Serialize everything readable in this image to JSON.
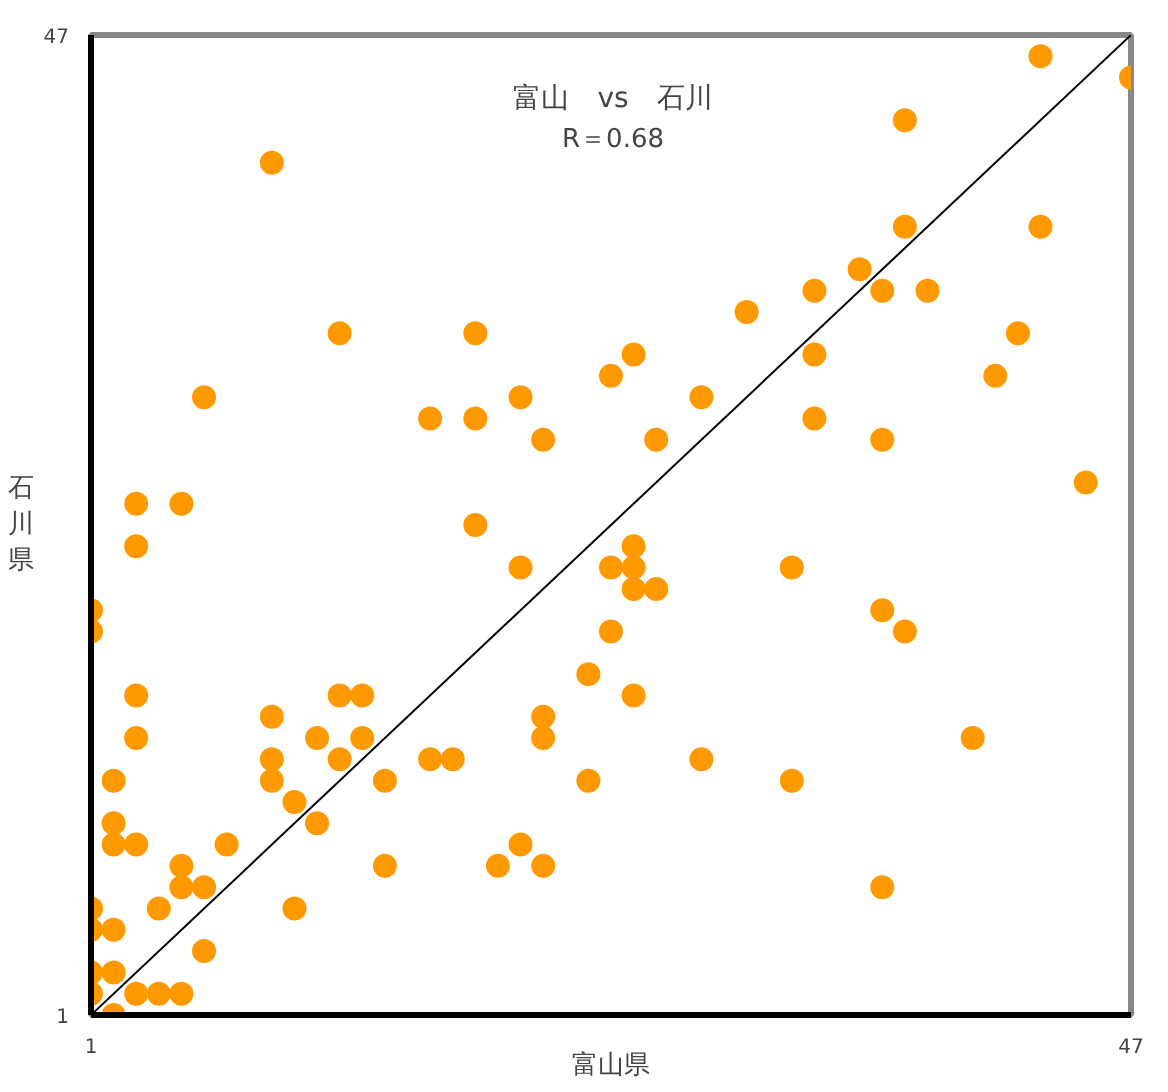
{
  "chart_data": {
    "type": "scatter",
    "title": "富山　vs　石川",
    "subtitle": "R＝0.68",
    "xlabel": "富山県",
    "ylabel": "石川県",
    "xlim": [
      1,
      47
    ],
    "ylim": [
      1,
      47
    ],
    "xticks": [
      1,
      47
    ],
    "yticks": [
      1,
      47
    ],
    "marker": "circle",
    "series": [
      {
        "color": "#ff9900",
        "x": [
          9,
          43,
          47,
          37,
          37,
          43,
          35,
          36,
          33,
          38,
          30,
          42,
          12,
          18,
          25,
          24,
          41,
          33,
          6,
          28,
          20,
          16,
          18,
          33,
          21,
          26,
          36,
          45,
          3,
          5,
          18,
          3,
          1,
          1,
          3,
          3,
          2,
          2,
          2,
          3,
          1,
          1,
          2,
          1,
          2,
          1,
          3,
          4,
          5,
          2,
          6,
          4,
          5,
          5,
          6,
          7,
          10,
          10,
          11,
          9,
          9,
          9,
          11,
          12,
          13,
          13,
          12,
          14,
          14,
          16,
          17,
          20,
          19,
          20,
          21,
          21,
          21,
          23,
          23,
          24,
          24,
          25,
          25,
          25,
          26,
          25,
          32,
          36,
          37,
          40,
          28,
          32,
          36
        ],
        "values": [
          41,
          46,
          45,
          43,
          38,
          38,
          36,
          35,
          35,
          35,
          34,
          33,
          33,
          33,
          32,
          31,
          31,
          32,
          30,
          30,
          30,
          29,
          29,
          29,
          28,
          28,
          28,
          26,
          25,
          25,
          24,
          23,
          20,
          19,
          16,
          14,
          12,
          10,
          9,
          9,
          6,
          5,
          5,
          3,
          3,
          2,
          2,
          2,
          2,
          1,
          4,
          6,
          8,
          7,
          7,
          9,
          6,
          11,
          10,
          15,
          13,
          12,
          14,
          16,
          16,
          14,
          13,
          12,
          8,
          13,
          13,
          22,
          8,
          9,
          8,
          15,
          14,
          17,
          12,
          22,
          19,
          23,
          22,
          21,
          21,
          16,
          22,
          20,
          19,
          14,
          13,
          12,
          7
        ]
      },
      {
        "type": "line",
        "color": "#000000",
        "marker": "none",
        "x": [
          1,
          47
        ],
        "values": [
          1,
          47
        ]
      }
    ]
  }
}
